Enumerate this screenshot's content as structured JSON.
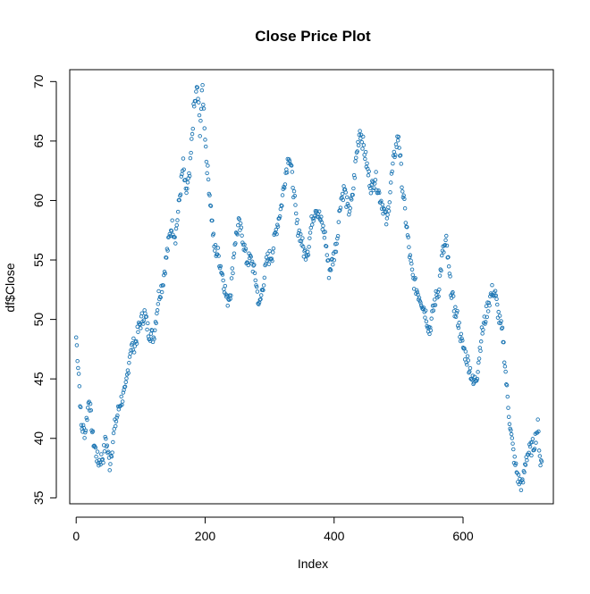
{
  "chart_data": {
    "type": "scatter",
    "title": "Close Price Plot",
    "xlabel": "Index",
    "ylabel": "df$Close",
    "xlim": [
      -10,
      740
    ],
    "ylim": [
      34.5,
      71
    ],
    "x_ticks": [
      0,
      200,
      400,
      600
    ],
    "y_ticks": [
      35,
      40,
      45,
      50,
      55,
      60,
      65,
      70
    ],
    "grid": false,
    "legend": "none",
    "marker": "open-circle",
    "point_color": "#1f77b4",
    "anchors": [
      [
        0,
        48.5
      ],
      [
        4,
        45.5
      ],
      [
        8,
        41.0
      ],
      [
        14,
        40.5
      ],
      [
        20,
        43.5
      ],
      [
        26,
        40.0
      ],
      [
        34,
        38.0
      ],
      [
        42,
        38.5
      ],
      [
        46,
        40.0
      ],
      [
        52,
        37.8
      ],
      [
        60,
        41.0
      ],
      [
        68,
        43.0
      ],
      [
        76,
        43.8
      ],
      [
        84,
        47.5
      ],
      [
        92,
        48.0
      ],
      [
        98,
        49.5
      ],
      [
        106,
        50.5
      ],
      [
        112,
        49.0
      ],
      [
        120,
        48.5
      ],
      [
        128,
        52.0
      ],
      [
        134,
        53.0
      ],
      [
        142,
        56.0
      ],
      [
        148,
        58.0
      ],
      [
        154,
        57.0
      ],
      [
        160,
        60.0
      ],
      [
        166,
        63.0
      ],
      [
        170,
        60.5
      ],
      [
        176,
        62.0
      ],
      [
        182,
        67.5
      ],
      [
        188,
        69.5
      ],
      [
        192,
        66.0
      ],
      [
        196,
        69.5
      ],
      [
        202,
        63.5
      ],
      [
        208,
        60.0
      ],
      [
        214,
        56.0
      ],
      [
        220,
        55.5
      ],
      [
        228,
        53.5
      ],
      [
        234,
        51.5
      ],
      [
        240,
        52.5
      ],
      [
        246,
        56.5
      ],
      [
        252,
        58.0
      ],
      [
        258,
        57.0
      ],
      [
        264,
        55.0
      ],
      [
        272,
        55.0
      ],
      [
        278,
        53.5
      ],
      [
        284,
        51.0
      ],
      [
        290,
        53.0
      ],
      [
        296,
        55.0
      ],
      [
        304,
        55.5
      ],
      [
        310,
        57.5
      ],
      [
        318,
        59.5
      ],
      [
        324,
        62.0
      ],
      [
        330,
        64.0
      ],
      [
        336,
        61.5
      ],
      [
        342,
        58.0
      ],
      [
        348,
        57.0
      ],
      [
        354,
        55.5
      ],
      [
        360,
        56.0
      ],
      [
        366,
        58.5
      ],
      [
        372,
        59.5
      ],
      [
        378,
        58.5
      ],
      [
        386,
        57.0
      ],
      [
        392,
        54.0
      ],
      [
        398,
        55.0
      ],
      [
        404,
        56.5
      ],
      [
        410,
        60.0
      ],
      [
        416,
        61.0
      ],
      [
        422,
        59.0
      ],
      [
        428,
        60.0
      ],
      [
        434,
        63.5
      ],
      [
        440,
        66.0
      ],
      [
        446,
        64.5
      ],
      [
        452,
        62.5
      ],
      [
        458,
        61.0
      ],
      [
        464,
        62.0
      ],
      [
        470,
        60.5
      ],
      [
        476,
        59.5
      ],
      [
        482,
        58.0
      ],
      [
        488,
        61.5
      ],
      [
        494,
        64.0
      ],
      [
        500,
        65.5
      ],
      [
        506,
        61.0
      ],
      [
        512,
        58.0
      ],
      [
        518,
        55.0
      ],
      [
        522,
        53.5
      ],
      [
        528,
        52.5
      ],
      [
        536,
        51.5
      ],
      [
        542,
        50.5
      ],
      [
        548,
        49.0
      ],
      [
        556,
        51.5
      ],
      [
        562,
        52.5
      ],
      [
        568,
        55.5
      ],
      [
        574,
        56.5
      ],
      [
        580,
        53.0
      ],
      [
        586,
        51.0
      ],
      [
        592,
        50.0
      ],
      [
        598,
        48.0
      ],
      [
        604,
        47.0
      ],
      [
        610,
        46.0
      ],
      [
        616,
        44.5
      ],
      [
        622,
        45.5
      ],
      [
        628,
        48.5
      ],
      [
        634,
        50.0
      ],
      [
        640,
        51.5
      ],
      [
        646,
        52.5
      ],
      [
        650,
        52.0
      ],
      [
        656,
        50.0
      ],
      [
        662,
        48.5
      ],
      [
        668,
        44.0
      ],
      [
        674,
        40.5
      ],
      [
        680,
        38.0
      ],
      [
        686,
        36.5
      ],
      [
        692,
        36.0
      ],
      [
        698,
        38.5
      ],
      [
        704,
        39.0
      ],
      [
        710,
        39.5
      ],
      [
        716,
        41.0
      ],
      [
        720,
        38.0
      ],
      [
        722,
        38.0
      ]
    ]
  }
}
